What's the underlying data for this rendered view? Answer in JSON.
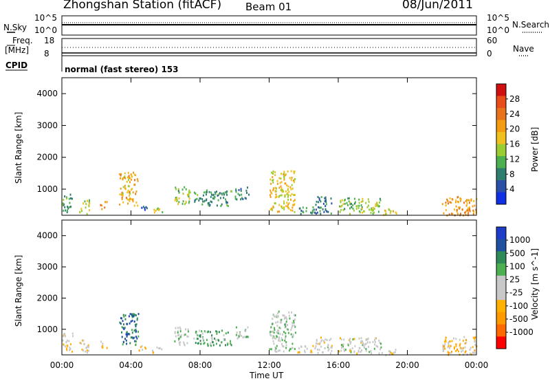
{
  "header": {
    "station": "Zhongshan Station (fitACF)",
    "beam": "Beam 01",
    "date": "08/Jun/2011"
  },
  "panels": {
    "nsky_label": "N.Sky",
    "nsearch_label": "N.Search",
    "nsky_ticks": [
      "10^5",
      "10^0"
    ],
    "freq_label": "Freq.",
    "freq_unit": "[MHz]",
    "freq_ticks": [
      "18",
      "8"
    ],
    "nave_label": "Nave",
    "nave_ticks": [
      "60",
      "0"
    ],
    "cpid_label": "CPID",
    "cpid_text": "normal (fast stereo) 153"
  },
  "colors": {
    "power": [
      "#1030e6",
      "#2c4fa8",
      "#2e7d6e",
      "#4caf50",
      "#9acd32",
      "#f0c020",
      "#f39c12",
      "#e8731a",
      "#e84d1a",
      "#d01010"
    ],
    "velocity": [
      "#ff0000",
      "#ff6a00",
      "#ff9900",
      "#ffb000",
      "#c8c8c8",
      "#c8c8c8",
      "#4caf50",
      "#2e8b57",
      "#2050a0",
      "#1e3cc8"
    ]
  },
  "chart_data": [
    {
      "type": "heatmap",
      "name": "power",
      "xlabel": "Time UT",
      "ylabel": "Slant Range [km]",
      "x_ticks": [
        "00:00",
        "04:00",
        "08:00",
        "12:00",
        "16:00",
        "20:00",
        "00:00"
      ],
      "y_ticks": [
        "1000",
        "2000",
        "3000",
        "4000"
      ],
      "xlim": [
        0,
        24
      ],
      "ylim": [
        180,
        4500
      ],
      "colorbar": {
        "label": "Power [dB]",
        "ticks": [
          "4",
          "8",
          "12",
          "16",
          "20",
          "24",
          "28"
        ],
        "range": [
          0,
          30
        ]
      },
      "patches": [
        {
          "t": [
            0.0,
            0.6
          ],
          "r": [
            300,
            900
          ],
          "v": 10
        },
        {
          "t": [
            1.0,
            1.6
          ],
          "r": [
            250,
            700
          ],
          "v": 14
        },
        {
          "t": [
            2.2,
            2.6
          ],
          "r": [
            400,
            650
          ],
          "v": 22
        },
        {
          "t": [
            3.3,
            4.4
          ],
          "r": [
            500,
            1550
          ],
          "v": 18
        },
        {
          "t": [
            4.4,
            4.9
          ],
          "r": [
            300,
            500
          ],
          "v": 6
        },
        {
          "t": [
            5.2,
            5.8
          ],
          "r": [
            250,
            450
          ],
          "v": 14
        },
        {
          "t": [
            6.5,
            7.4
          ],
          "r": [
            500,
            1100
          ],
          "v": 12
        },
        {
          "t": [
            7.6,
            9.8
          ],
          "r": [
            500,
            1000
          ],
          "v": 9
        },
        {
          "t": [
            10.0,
            10.8
          ],
          "r": [
            700,
            1100
          ],
          "v": 8
        },
        {
          "t": [
            12.0,
            13.5
          ],
          "r": [
            300,
            1600
          ],
          "v": 16
        },
        {
          "t": [
            13.6,
            14.6
          ],
          "r": [
            250,
            500
          ],
          "v": 8
        },
        {
          "t": [
            14.6,
            15.6
          ],
          "r": [
            250,
            800
          ],
          "v": 7
        },
        {
          "t": [
            16.0,
            18.5
          ],
          "r": [
            250,
            750
          ],
          "v": 12
        },
        {
          "t": [
            18.5,
            19.4
          ],
          "r": [
            200,
            400
          ],
          "v": 16
        },
        {
          "t": [
            22.0,
            24.0
          ],
          "r": [
            200,
            800
          ],
          "v": 20
        }
      ]
    },
    {
      "type": "heatmap",
      "name": "velocity",
      "xlabel": "Time UT",
      "ylabel": "Slant Range [km]",
      "x_ticks": [
        "00:00",
        "04:00",
        "08:00",
        "12:00",
        "16:00",
        "20:00",
        "00:00"
      ],
      "y_ticks": [
        "1000",
        "2000",
        "3000",
        "4000"
      ],
      "xlim": [
        0,
        24
      ],
      "ylim": [
        180,
        4500
      ],
      "colorbar": {
        "label": "Velocity [m s^-1]",
        "ticks": [
          "1000",
          "500",
          "100",
          "25",
          "-25",
          "-100",
          "-500",
          "-1000"
        ],
        "range": [
          -1200,
          1200
        ]
      },
      "patches": [
        {
          "t": [
            0.0,
            0.6
          ],
          "r": [
            300,
            900
          ],
          "v": -150
        },
        {
          "t": [
            1.0,
            1.6
          ],
          "r": [
            250,
            700
          ],
          "v": -200
        },
        {
          "t": [
            2.2,
            2.6
          ],
          "r": [
            400,
            650
          ],
          "v": -120
        },
        {
          "t": [
            3.3,
            4.4
          ],
          "r": [
            500,
            1550
          ],
          "v": 700
        },
        {
          "t": [
            4.4,
            4.9
          ],
          "r": [
            300,
            500
          ],
          "v": -300
        },
        {
          "t": [
            5.2,
            5.8
          ],
          "r": [
            250,
            450
          ],
          "v": -100
        },
        {
          "t": [
            6.5,
            7.4
          ],
          "r": [
            500,
            1100
          ],
          "v": 150
        },
        {
          "t": [
            7.6,
            9.8
          ],
          "r": [
            500,
            1000
          ],
          "v": 400
        },
        {
          "t": [
            10.0,
            10.8
          ],
          "r": [
            700,
            1100
          ],
          "v": 300
        },
        {
          "t": [
            12.0,
            13.5
          ],
          "r": [
            300,
            1600
          ],
          "v": 200
        },
        {
          "t": [
            13.6,
            14.6
          ],
          "r": [
            250,
            500
          ],
          "v": -150
        },
        {
          "t": [
            14.6,
            15.6
          ],
          "r": [
            250,
            800
          ],
          "v": 0
        },
        {
          "t": [
            16.0,
            18.5
          ],
          "r": [
            250,
            750
          ],
          "v": 0
        },
        {
          "t": [
            18.5,
            19.4
          ],
          "r": [
            200,
            400
          ],
          "v": -200
        },
        {
          "t": [
            22.0,
            24.0
          ],
          "r": [
            200,
            800
          ],
          "v": -300
        }
      ]
    }
  ]
}
